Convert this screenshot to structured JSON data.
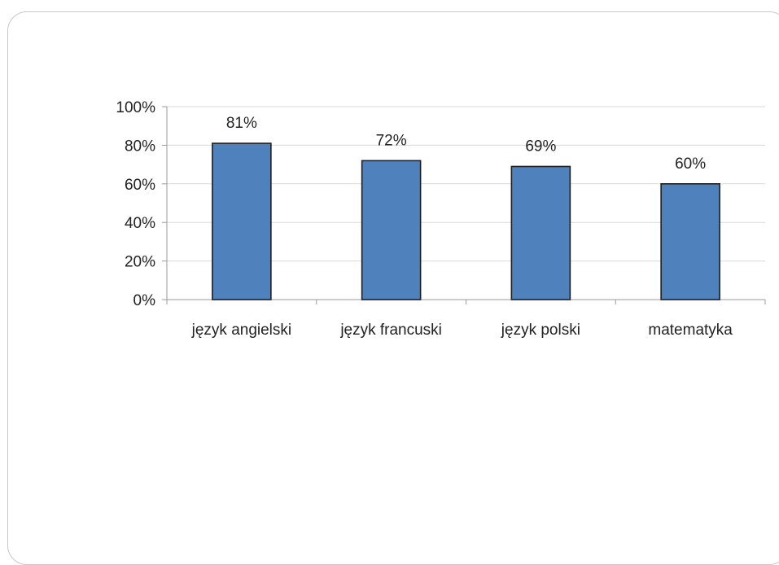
{
  "chart_data": {
    "type": "bar",
    "categories": [
      "język angielski",
      "język francuski",
      "język polski",
      "matematyka"
    ],
    "values": [
      81,
      72,
      69,
      60
    ],
    "data_labels": [
      "81%",
      "72%",
      "69%",
      "60%"
    ],
    "y_tick_labels": [
      "0%",
      "20%",
      "40%",
      "60%",
      "80%",
      "100%"
    ],
    "y_ticks": [
      0,
      20,
      40,
      60,
      80,
      100
    ],
    "ylim": [
      0,
      100
    ],
    "title": "",
    "xlabel": "",
    "ylabel": "",
    "grid": true,
    "legend": "none",
    "bar_color": "#4f81bd",
    "bar_edge_color": "#1f1f1f",
    "grid_color": "#d9d9d9"
  }
}
